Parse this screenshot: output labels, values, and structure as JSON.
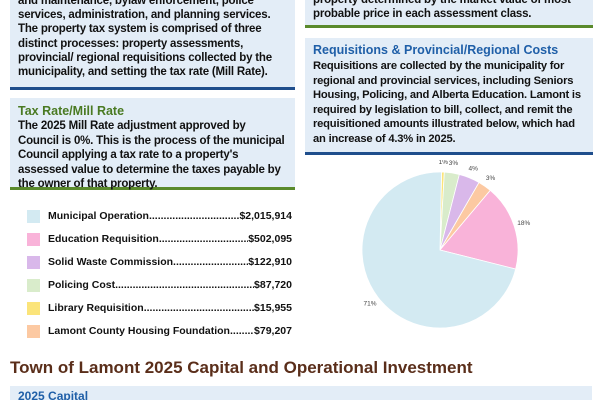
{
  "top_left_text": "and maintenance, bylaw enforcement, police services, administration, and planning services. The property tax system is comprised of three distinct processes: property assessments, provincial/ regional requisitions collected by the municipality, and setting the tax rate (Mill Rate).",
  "top_right_text": "property determined by the market value of most probable price in each assessment class.",
  "requisitions": {
    "title": "Requisitions & Provincial/Regional Costs",
    "body": "Requisitions are collected by the municipality for regional and provincial services, including Seniors Housing, Policing, and Alberta Education. Lamont is required by legislation to bill, collect, and remit the requisitioned amounts illustrated below, which had an increase of 4.3% in 2025."
  },
  "tax_rate": {
    "title": "Tax Rate/Mill Rate",
    "body": "The 2025 Mill Rate adjustment approved by Council is 0%. This is the process of the municipal Council applying a tax rate to a property's assessed value to determine the taxes payable by the owner of that property."
  },
  "legend": [
    {
      "label": "Municipal Operation",
      "value": "$2,015,914",
      "color": "#d3eaf2"
    },
    {
      "label": "Education Requisition",
      "value": "$502,095",
      "color": "#f9b3d9"
    },
    {
      "label": "Solid Waste Commission",
      "value": "$122,910",
      "color": "#d9b8ea"
    },
    {
      "label": "Policing Cost ",
      "value": "$87,720",
      "color": "#d9eccb"
    },
    {
      "label": "Library Requisition",
      "value": "$15,955",
      "color": "#fbe47a"
    },
    {
      "label": "Lamont County Housing Foundation ",
      "value": "$79,207",
      "color": "#fcc9a2"
    }
  ],
  "chart_data": {
    "type": "pie",
    "categories": [
      "Municipal Operation",
      "Education Requisition",
      "Solid Waste Commission",
      "Policing Cost",
      "Library Requisition",
      "Lamont County Housing Foundation"
    ],
    "values": [
      2015914,
      502095,
      122910,
      87720,
      15955,
      79207
    ],
    "slice_labels": [
      "71%",
      "18%",
      "4%",
      "3%",
      "1%",
      "3%"
    ],
    "colors": [
      "#d3eaf2",
      "#f9b3d9",
      "#d9b8ea",
      "#d9eccb",
      "#fbe47a",
      "#fcc9a2"
    ]
  },
  "section_title": "Town of Lamont 2025 Capital and Operational Investment",
  "capital_label": "2025 Capital"
}
